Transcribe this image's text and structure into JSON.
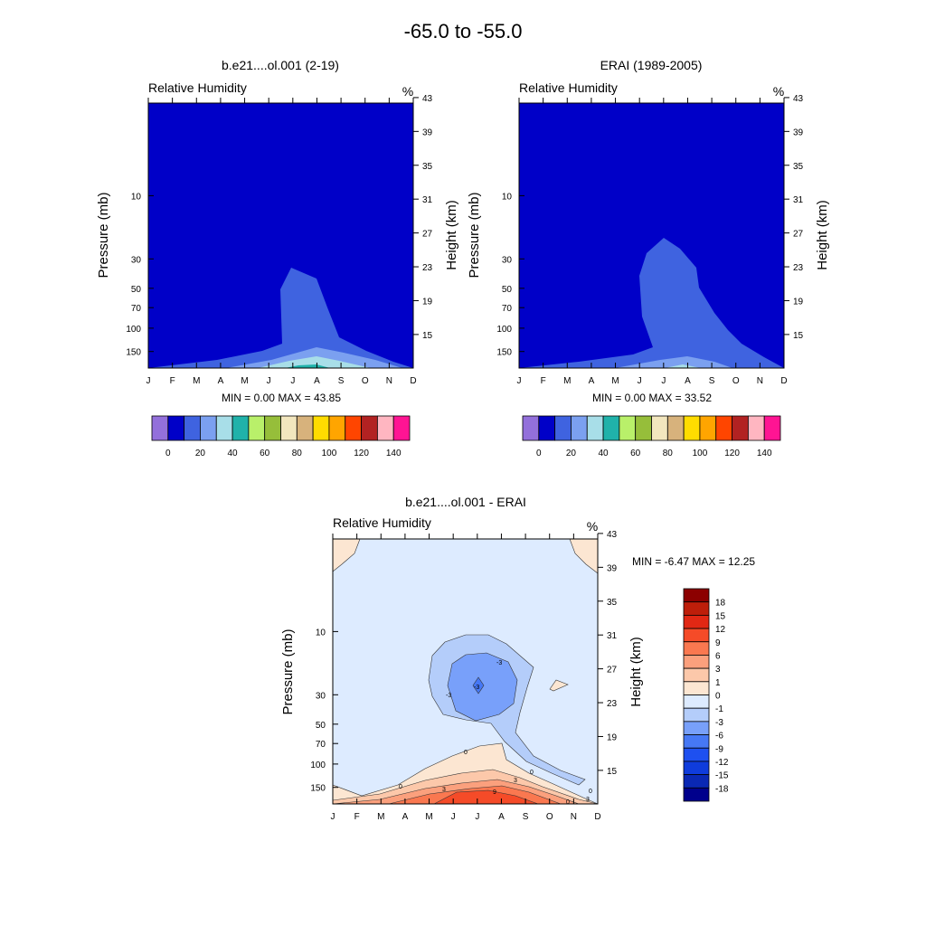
{
  "figure": {
    "title": "-65.0 to -55.0"
  },
  "colors": {
    "abs_palette": [
      "#9370DB",
      "#0000C8",
      "#3F63E0",
      "#7BA0F0",
      "#A8DEE8",
      "#20B2AA",
      "#B9F06A",
      "#96BE3A",
      "#F2E6BE",
      "#D7B27C",
      "#FFDC00",
      "#FFA500",
      "#FF4500",
      "#B22222",
      "#FFB6C1",
      "#FF1493"
    ],
    "diff_palette": [
      "#00008C",
      "#0A28B4",
      "#0F3CDC",
      "#1E50F0",
      "#4678F5",
      "#78A0FA",
      "#B4CDFA",
      "#DDEBFF",
      "#FCE6D2",
      "#FCC8AA",
      "#FBA07D",
      "#FA7850",
      "#F54B28",
      "#E12814",
      "#BE1E0A",
      "#8C0000"
    ]
  },
  "chart_data": [
    {
      "type": "contour",
      "title": "b.e21....ol.001 (2-19)",
      "variable": "Relative Humidity",
      "units": "%",
      "xlabel": "",
      "ylabel": "Pressure (mb)",
      "y2label": "Height (km)",
      "x_ticks": [
        "J",
        "F",
        "M",
        "A",
        "M",
        "J",
        "J",
        "A",
        "S",
        "O",
        "N",
        "D"
      ],
      "y_ticks": [
        10,
        30,
        50,
        70,
        100,
        150
      ],
      "y2_ticks": [
        43,
        39,
        35,
        31,
        27,
        23,
        19,
        15
      ],
      "ylim": [
        200,
        2
      ],
      "min_label": "MIN =   0.00  MAX =  43.85",
      "colorbar_levels": [
        0,
        10,
        20,
        30,
        40,
        50,
        60,
        70,
        80,
        90,
        100,
        110,
        120,
        130,
        140
      ],
      "colorbar_labels": [
        "0",
        "20",
        "40",
        "60",
        "80",
        "100",
        "120",
        "140"
      ]
    },
    {
      "type": "contour",
      "title": "ERAI (1989-2005)",
      "variable": "Relative Humidity",
      "units": "%",
      "xlabel": "",
      "ylabel": "Pressure (mb)",
      "y2label": "Height (km)",
      "x_ticks": [
        "J",
        "F",
        "M",
        "A",
        "M",
        "J",
        "J",
        "A",
        "S",
        "O",
        "N",
        "D"
      ],
      "y_ticks": [
        10,
        30,
        50,
        70,
        100,
        150
      ],
      "y2_ticks": [
        43,
        39,
        35,
        31,
        27,
        23,
        19,
        15
      ],
      "ylim": [
        200,
        2
      ],
      "min_label": "MIN =   0.00  MAX =  33.52",
      "colorbar_levels": [
        0,
        10,
        20,
        30,
        40,
        50,
        60,
        70,
        80,
        90,
        100,
        110,
        120,
        130,
        140
      ],
      "colorbar_labels": [
        "0",
        "20",
        "40",
        "60",
        "80",
        "100",
        "120",
        "140"
      ]
    },
    {
      "type": "contour",
      "title": "b.e21....ol.001 - ERAI",
      "variable": "Relative Humidity",
      "units": "%",
      "xlabel": "",
      "ylabel": "Pressure (mb)",
      "y2label": "Height (km)",
      "x_ticks": [
        "J",
        "F",
        "M",
        "A",
        "M",
        "J",
        "J",
        "A",
        "S",
        "O",
        "N",
        "D"
      ],
      "y_ticks": [
        10,
        30,
        50,
        70,
        100,
        150
      ],
      "y2_ticks": [
        43,
        39,
        35,
        31,
        27,
        23,
        19,
        15
      ],
      "ylim": [
        200,
        2
      ],
      "min_label": "MIN =  -6.47  MAX =  12.25",
      "colorbar_levels": [
        -18,
        -15,
        -12,
        -9,
        -6,
        -3,
        -1,
        0,
        1,
        3,
        6,
        9,
        12,
        15,
        18
      ],
      "colorbar_labels": [
        "18",
        "15",
        "12",
        "9",
        "6",
        "3",
        "1",
        "0",
        "-1",
        "-3",
        "-6",
        "-9",
        "-12",
        "-15",
        "-18"
      ],
      "contour_line_labels": [
        "-3",
        "-3",
        "-3",
        "0",
        "0",
        "0",
        "0",
        "0",
        "3",
        "3",
        "3",
        "9"
      ]
    }
  ]
}
